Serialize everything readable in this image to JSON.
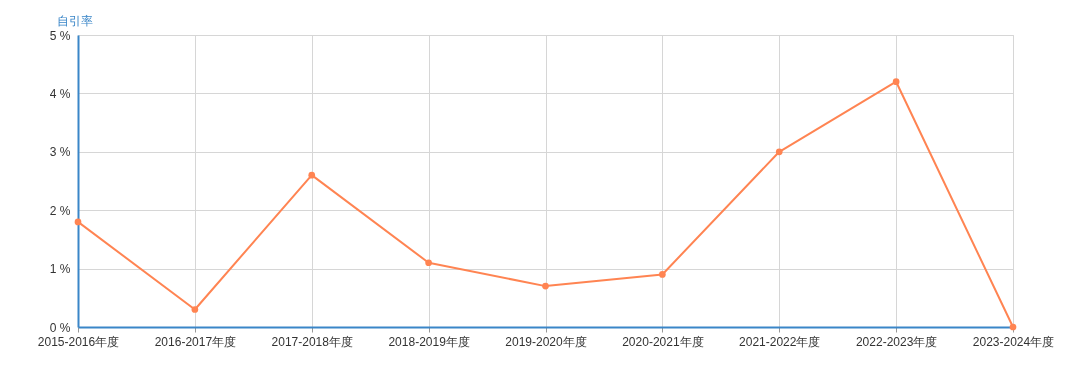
{
  "chart_data": {
    "type": "line",
    "ylabel": "自引率",
    "categories": [
      "2015-2016年度",
      "2016-2017年度",
      "2017-2018年度",
      "2018-2019年度",
      "2019-2020年度",
      "2020-2021年度",
      "2021-2022年度",
      "2022-2023年度",
      "2023-2024年度"
    ],
    "series": [
      {
        "color": "#ff8452",
        "values": [
          1.8,
          0.3,
          2.6,
          1.1,
          0.7,
          0.9,
          3.0,
          4.2,
          0
        ]
      }
    ],
    "ylim": [
      0,
      5
    ],
    "yticks": [
      {
        "value": 0,
        "label": "0 %"
      },
      {
        "value": 1,
        "label": "1 %"
      },
      {
        "value": 2,
        "label": "2 %"
      },
      {
        "value": 3,
        "label": "3 %"
      },
      {
        "value": 4,
        "label": "4 %"
      },
      {
        "value": 5,
        "label": "5 %"
      }
    ],
    "grid": true,
    "marker": "circle",
    "legend": false
  }
}
